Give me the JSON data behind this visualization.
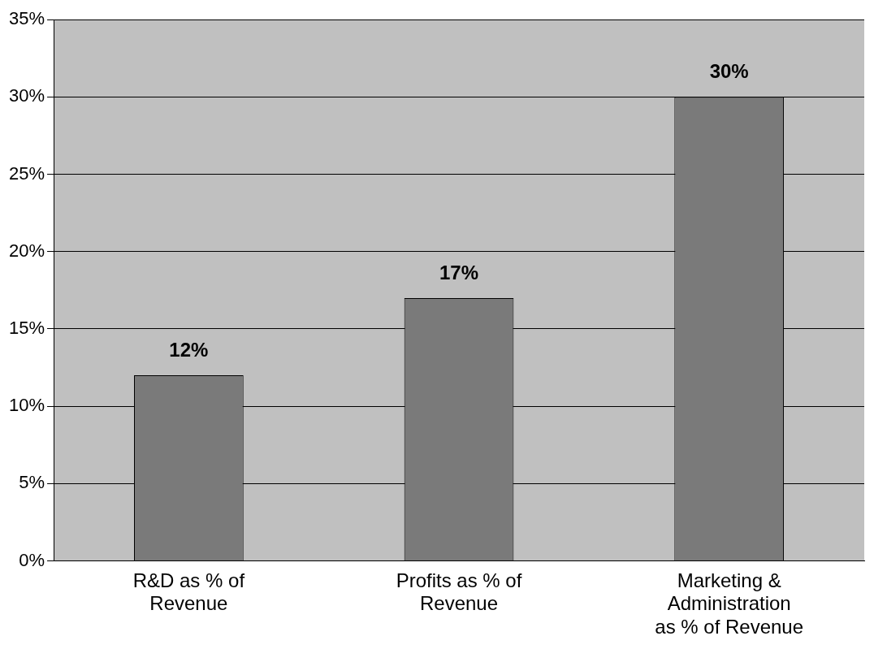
{
  "chart_data": {
    "type": "bar",
    "categories": [
      "R&D as % of Revenue",
      "Profits as % of Revenue",
      "Marketing & Administration as % of Revenue"
    ],
    "values": [
      12,
      17,
      30
    ],
    "value_labels": [
      "12%",
      "17%",
      "30%"
    ],
    "color": "#7a7a7a",
    "ylim": [
      0,
      35
    ],
    "yticks": [
      {
        "value": 0,
        "label": "0%"
      },
      {
        "value": 5,
        "label": "5%"
      },
      {
        "value": 10,
        "label": "10%"
      },
      {
        "value": 15,
        "label": "15%"
      },
      {
        "value": 20,
        "label": "20%"
      },
      {
        "value": 25,
        "label": "25%"
      },
      {
        "value": 30,
        "label": "30%"
      },
      {
        "value": 35,
        "label": "35%"
      }
    ],
    "grid": "y"
  }
}
